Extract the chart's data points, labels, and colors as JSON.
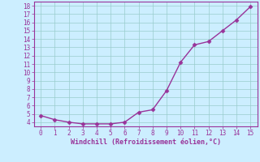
{
  "x": [
    0,
    1,
    2,
    3,
    4,
    5,
    6,
    7,
    8,
    9,
    10,
    11,
    12,
    13,
    14,
    15
  ],
  "y": [
    4.8,
    4.3,
    4.0,
    3.8,
    3.8,
    3.8,
    4.0,
    5.2,
    5.5,
    7.8,
    11.2,
    13.3,
    13.7,
    15.0,
    16.3,
    17.9
  ],
  "line_color": "#993399",
  "marker_color": "#993399",
  "bg_color": "#cceeff",
  "grid_color": "#99cccc",
  "xlabel": "Windchill (Refroidissement éolien,°C)",
  "xlabel_color": "#993399",
  "tick_color": "#993399",
  "xlim": [
    -0.5,
    15.5
  ],
  "ylim": [
    3.5,
    18.5
  ],
  "yticks": [
    4,
    5,
    6,
    7,
    8,
    9,
    10,
    11,
    12,
    13,
    14,
    15,
    16,
    17,
    18
  ],
  "xticks": [
    0,
    1,
    2,
    3,
    4,
    5,
    6,
    7,
    8,
    9,
    10,
    11,
    12,
    13,
    14,
    15
  ],
  "marker_size": 2.5,
  "line_width": 1.0
}
